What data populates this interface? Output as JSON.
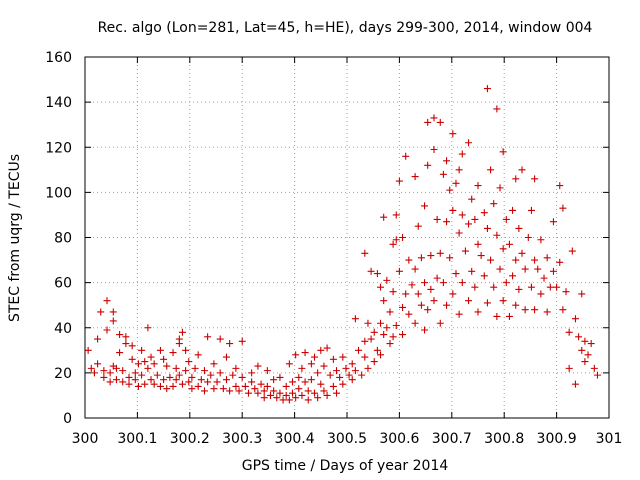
{
  "chart_data": {
    "type": "scatter",
    "title": "Rec. algo (Lon=281, Lat=45, h=HE), days 299-300, 2014, window 004",
    "xlabel": "GPS time / Days of year 2014",
    "ylabel": "STEC from uqrg / TECUs",
    "xlim": [
      300,
      301
    ],
    "ylim": [
      0,
      160
    ],
    "xticks": [
      "300",
      "300.1",
      "300.2",
      "300.3",
      "300.4",
      "300.5",
      "300.6",
      "300.7",
      "300.8",
      "300.9",
      "301"
    ],
    "yticks": [
      "0",
      "20",
      "40",
      "60",
      "80",
      "100",
      "120",
      "140",
      "160"
    ],
    "grid": true,
    "marker": "+",
    "color": "#cc0000",
    "series": [
      {
        "points": [
          [
            300.006,
            30
          ],
          [
            300.012,
            22
          ],
          [
            300.018,
            20
          ],
          [
            300.024,
            35
          ],
          [
            300.024,
            24
          ],
          [
            300.03,
            47
          ],
          [
            300.036,
            21
          ],
          [
            300.036,
            18
          ],
          [
            300.042,
            52
          ],
          [
            300.042,
            39
          ],
          [
            300.048,
            20
          ],
          [
            300.048,
            16
          ],
          [
            300.054,
            47
          ],
          [
            300.054,
            43
          ],
          [
            300.054,
            23
          ],
          [
            300.06,
            22
          ],
          [
            300.06,
            17
          ],
          [
            300.066,
            37
          ],
          [
            300.066,
            29
          ],
          [
            300.072,
            21
          ],
          [
            300.072,
            16
          ],
          [
            300.078,
            36
          ],
          [
            300.078,
            33
          ],
          [
            300.084,
            18
          ],
          [
            300.084,
            15
          ],
          [
            300.09,
            32
          ],
          [
            300.09,
            26
          ],
          [
            300.096,
            20
          ],
          [
            300.096,
            17
          ],
          [
            300.102,
            24
          ],
          [
            300.102,
            14
          ],
          [
            300.108,
            30
          ],
          [
            300.108,
            19
          ],
          [
            300.114,
            25
          ],
          [
            300.114,
            15
          ],
          [
            300.12,
            40
          ],
          [
            300.12,
            22
          ],
          [
            300.126,
            27
          ],
          [
            300.126,
            17
          ],
          [
            300.132,
            24
          ],
          [
            300.132,
            15
          ],
          [
            300.138,
            19
          ],
          [
            300.144,
            30
          ],
          [
            300.144,
            14
          ],
          [
            300.15,
            26
          ],
          [
            300.15,
            17
          ],
          [
            300.156,
            23
          ],
          [
            300.156,
            13
          ],
          [
            300.162,
            18
          ],
          [
            300.168,
            29
          ],
          [
            300.168,
            14
          ],
          [
            300.174,
            22
          ],
          [
            300.174,
            17
          ],
          [
            300.18,
            35
          ],
          [
            300.18,
            33
          ],
          [
            300.18,
            19
          ],
          [
            300.186,
            38
          ],
          [
            300.186,
            15
          ],
          [
            300.192,
            30
          ],
          [
            300.192,
            21
          ],
          [
            300.198,
            25
          ],
          [
            300.198,
            16
          ],
          [
            300.204,
            18
          ],
          [
            300.204,
            13
          ],
          [
            300.21,
            22
          ],
          [
            300.216,
            28
          ],
          [
            300.216,
            14
          ],
          [
            300.222,
            17
          ],
          [
            300.228,
            21
          ],
          [
            300.228,
            12
          ],
          [
            300.234,
            36
          ],
          [
            300.234,
            16
          ],
          [
            300.24,
            19
          ],
          [
            300.246,
            24
          ],
          [
            300.246,
            13
          ],
          [
            300.252,
            16
          ],
          [
            300.258,
            35
          ],
          [
            300.258,
            20
          ],
          [
            300.264,
            13
          ],
          [
            300.27,
            27
          ],
          [
            300.27,
            17
          ],
          [
            300.276,
            33
          ],
          [
            300.276,
            12
          ],
          [
            300.282,
            19
          ],
          [
            300.288,
            22
          ],
          [
            300.288,
            14
          ],
          [
            300.294,
            12
          ],
          [
            300.3,
            34
          ],
          [
            300.3,
            18
          ],
          [
            300.306,
            14
          ],
          [
            300.312,
            11
          ],
          [
            300.318,
            20
          ],
          [
            300.318,
            16
          ],
          [
            300.324,
            13
          ],
          [
            300.33,
            11
          ],
          [
            300.33,
            23
          ],
          [
            300.336,
            15
          ],
          [
            300.342,
            12
          ],
          [
            300.342,
            9
          ],
          [
            300.348,
            21
          ],
          [
            300.348,
            14
          ],
          [
            300.354,
            10
          ],
          [
            300.36,
            17
          ],
          [
            300.36,
            12
          ],
          [
            300.366,
            9
          ],
          [
            300.372,
            18
          ],
          [
            300.372,
            11
          ],
          [
            300.378,
            8
          ],
          [
            300.384,
            14
          ],
          [
            300.384,
            10
          ],
          [
            300.39,
            24
          ],
          [
            300.39,
            8
          ],
          [
            300.396,
            16
          ],
          [
            300.396,
            11
          ],
          [
            300.402,
            28
          ],
          [
            300.402,
            9
          ],
          [
            300.408,
            18
          ],
          [
            300.408,
            13
          ],
          [
            300.414,
            22
          ],
          [
            300.414,
            10
          ],
          [
            300.42,
            29
          ],
          [
            300.42,
            16
          ],
          [
            300.426,
            12
          ],
          [
            300.426,
            8
          ],
          [
            300.432,
            24
          ],
          [
            300.432,
            17
          ],
          [
            300.438,
            27
          ],
          [
            300.438,
            11
          ],
          [
            300.444,
            20
          ],
          [
            300.444,
            9
          ],
          [
            300.45,
            30
          ],
          [
            300.45,
            15
          ],
          [
            300.456,
            23
          ],
          [
            300.456,
            12
          ],
          [
            300.462,
            31
          ],
          [
            300.462,
            10
          ],
          [
            300.468,
            19
          ],
          [
            300.474,
            26
          ],
          [
            300.474,
            14
          ],
          [
            300.48,
            21
          ],
          [
            300.48,
            11
          ],
          [
            300.486,
            18
          ],
          [
            300.492,
            27
          ],
          [
            300.492,
            15
          ],
          [
            300.498,
            22
          ],
          [
            300.504,
            19
          ],
          [
            300.51,
            24
          ],
          [
            300.51,
            17
          ],
          [
            300.516,
            44
          ],
          [
            300.516,
            21
          ],
          [
            300.522,
            30
          ],
          [
            300.528,
            19
          ],
          [
            300.534,
            73
          ],
          [
            300.534,
            34
          ],
          [
            300.534,
            27
          ],
          [
            300.54,
            42
          ],
          [
            300.54,
            22
          ],
          [
            300.546,
            65
          ],
          [
            300.546,
            35
          ],
          [
            300.552,
            38
          ],
          [
            300.552,
            25
          ],
          [
            300.558,
            64
          ],
          [
            300.558,
            30
          ],
          [
            300.564,
            58
          ],
          [
            300.564,
            42
          ],
          [
            300.564,
            28
          ],
          [
            300.57,
            89
          ],
          [
            300.57,
            52
          ],
          [
            300.57,
            37
          ],
          [
            300.576,
            61
          ],
          [
            300.576,
            40
          ],
          [
            300.582,
            47
          ],
          [
            300.582,
            33
          ],
          [
            300.588,
            77
          ],
          [
            300.588,
            56
          ],
          [
            300.588,
            36
          ],
          [
            300.594,
            90
          ],
          [
            300.594,
            79
          ],
          [
            300.594,
            41
          ],
          [
            300.6,
            105
          ],
          [
            300.6,
            65
          ],
          [
            300.606,
            80
          ],
          [
            300.606,
            49
          ],
          [
            300.606,
            37
          ],
          [
            300.612,
            116
          ],
          [
            300.612,
            55
          ],
          [
            300.618,
            70
          ],
          [
            300.618,
            46
          ],
          [
            300.624,
            59
          ],
          [
            300.63,
            107
          ],
          [
            300.63,
            66
          ],
          [
            300.63,
            42
          ],
          [
            300.636,
            85
          ],
          [
            300.636,
            55
          ],
          [
            300.642,
            71
          ],
          [
            300.642,
            50
          ],
          [
            300.648,
            94
          ],
          [
            300.648,
            60
          ],
          [
            300.648,
            39
          ],
          [
            300.654,
            131
          ],
          [
            300.654,
            112
          ],
          [
            300.654,
            48
          ],
          [
            300.66,
            72
          ],
          [
            300.66,
            57
          ],
          [
            300.666,
            133
          ],
          [
            300.666,
            119
          ],
          [
            300.666,
            52
          ],
          [
            300.672,
            88
          ],
          [
            300.672,
            62
          ],
          [
            300.678,
            131
          ],
          [
            300.678,
            73
          ],
          [
            300.678,
            42
          ],
          [
            300.684,
            108
          ],
          [
            300.684,
            60
          ],
          [
            300.69,
            114
          ],
          [
            300.69,
            87
          ],
          [
            300.69,
            50
          ],
          [
            300.696,
            101
          ],
          [
            300.696,
            71
          ],
          [
            300.702,
            126
          ],
          [
            300.702,
            92
          ],
          [
            300.702,
            55
          ],
          [
            300.708,
            104
          ],
          [
            300.708,
            64
          ],
          [
            300.714,
            110
          ],
          [
            300.714,
            82
          ],
          [
            300.714,
            46
          ],
          [
            300.72,
            117
          ],
          [
            300.72,
            90
          ],
          [
            300.72,
            60
          ],
          [
            300.726,
            74
          ],
          [
            300.732,
            122
          ],
          [
            300.732,
            86
          ],
          [
            300.732,
            52
          ],
          [
            300.738,
            97
          ],
          [
            300.738,
            65
          ],
          [
            300.744,
            88
          ],
          [
            300.744,
            58
          ],
          [
            300.75,
            103
          ],
          [
            300.75,
            77
          ],
          [
            300.75,
            47
          ],
          [
            300.756,
            72
          ],
          [
            300.762,
            91
          ],
          [
            300.762,
            63
          ],
          [
            300.768,
            146
          ],
          [
            300.768,
            84
          ],
          [
            300.768,
            51
          ],
          [
            300.774,
            110
          ],
          [
            300.774,
            70
          ],
          [
            300.78,
            95
          ],
          [
            300.78,
            58
          ],
          [
            300.786,
            137
          ],
          [
            300.786,
            81
          ],
          [
            300.786,
            45
          ],
          [
            300.792,
            102
          ],
          [
            300.792,
            66
          ],
          [
            300.798,
            118
          ],
          [
            300.798,
            75
          ],
          [
            300.798,
            52
          ],
          [
            300.804,
            88
          ],
          [
            300.804,
            60
          ],
          [
            300.81,
            77
          ],
          [
            300.81,
            45
          ],
          [
            300.816,
            92
          ],
          [
            300.816,
            63
          ],
          [
            300.822,
            106
          ],
          [
            300.822,
            70
          ],
          [
            300.822,
            50
          ],
          [
            300.828,
            84
          ],
          [
            300.828,
            57
          ],
          [
            300.834,
            110
          ],
          [
            300.834,
            73
          ],
          [
            300.84,
            66
          ],
          [
            300.84,
            48
          ],
          [
            300.846,
            80
          ],
          [
            300.852,
            92
          ],
          [
            300.852,
            58
          ],
          [
            300.858,
            106
          ],
          [
            300.858,
            70
          ],
          [
            300.858,
            48
          ],
          [
            300.864,
            66
          ],
          [
            300.87,
            79
          ],
          [
            300.87,
            55
          ],
          [
            300.876,
            62
          ],
          [
            300.882,
            71
          ],
          [
            300.882,
            47
          ],
          [
            300.888,
            58
          ],
          [
            300.894,
            87
          ],
          [
            300.894,
            65
          ],
          [
            300.9,
            58
          ],
          [
            300.906,
            103
          ],
          [
            300.906,
            69
          ],
          [
            300.912,
            93
          ],
          [
            300.912,
            48
          ],
          [
            300.918,
            56
          ],
          [
            300.924,
            22
          ],
          [
            300.924,
            38
          ],
          [
            300.93,
            74
          ],
          [
            300.936,
            44
          ],
          [
            300.936,
            15
          ],
          [
            300.942,
            36
          ],
          [
            300.948,
            55
          ],
          [
            300.948,
            30
          ],
          [
            300.954,
            34
          ],
          [
            300.954,
            25
          ],
          [
            300.96,
            28
          ],
          [
            300.966,
            33
          ],
          [
            300.972,
            22
          ],
          [
            300.978,
            19
          ]
        ]
      }
    ]
  }
}
